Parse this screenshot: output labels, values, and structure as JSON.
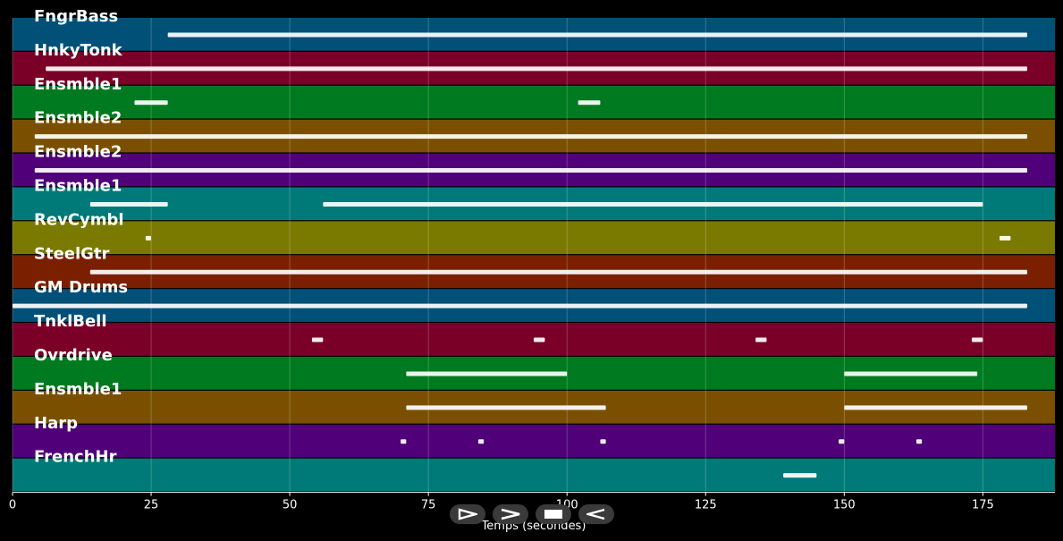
{
  "figure": {
    "background": "#000000",
    "xlabel": "Temps (secondes)",
    "xlim": [
      0,
      188
    ],
    "xticks": [
      0,
      25,
      50,
      75,
      100,
      125,
      150,
      175
    ],
    "grid": true
  },
  "tracks": [
    {
      "name": "FngrBass",
      "color": "#005078"
    },
    {
      "name": "HnkyTonk",
      "color": "#7a0028"
    },
    {
      "name": "Ensmble1",
      "color": "#007a20"
    },
    {
      "name": "Ensmble2",
      "color": "#7a5000"
    },
    {
      "name": "Ensmble2",
      "color": "#500078"
    },
    {
      "name": "Ensmble1",
      "color": "#007a78"
    },
    {
      "name": "RevCymbl",
      "color": "#7a7a00"
    },
    {
      "name": "SteelGtr",
      "color": "#7a2000"
    },
    {
      "name": "GM Drums",
      "color": "#005078"
    },
    {
      "name": "TnklBell",
      "color": "#7a0028"
    },
    {
      "name": "Ovrdrive",
      "color": "#007a20"
    },
    {
      "name": "Ensmble1",
      "color": "#7a5000"
    },
    {
      "name": "Harp",
      "color": "#500078"
    },
    {
      "name": "FrenchHr",
      "color": "#007a78"
    }
  ],
  "note_segments": [
    [
      [
        28,
        183
      ]
    ],
    [
      [
        6,
        183
      ]
    ],
    [
      [
        22,
        28
      ],
      [
        102,
        106
      ]
    ],
    [
      [
        4,
        183
      ]
    ],
    [
      [
        4,
        183
      ]
    ],
    [
      [
        14,
        28
      ],
      [
        56,
        175
      ]
    ],
    [
      [
        24,
        25
      ],
      [
        178,
        180
      ]
    ],
    [
      [
        14,
        183
      ]
    ],
    [
      [
        0,
        183
      ]
    ],
    [
      [
        54,
        56
      ],
      [
        94,
        96
      ],
      [
        134,
        136
      ],
      [
        173,
        175
      ]
    ],
    [
      [
        71,
        100
      ],
      [
        150,
        174
      ]
    ],
    [
      [
        71,
        107
      ],
      [
        150,
        183
      ]
    ],
    [
      [
        70,
        71
      ],
      [
        84,
        85
      ],
      [
        106,
        107
      ],
      [
        149,
        150
      ],
      [
        163,
        164
      ]
    ],
    [
      [
        139,
        145
      ]
    ]
  ],
  "controls": [
    {
      "icon": "play-icon"
    },
    {
      "icon": "forward-icon"
    },
    {
      "icon": "stop-icon"
    },
    {
      "icon": "rewind-icon"
    }
  ]
}
